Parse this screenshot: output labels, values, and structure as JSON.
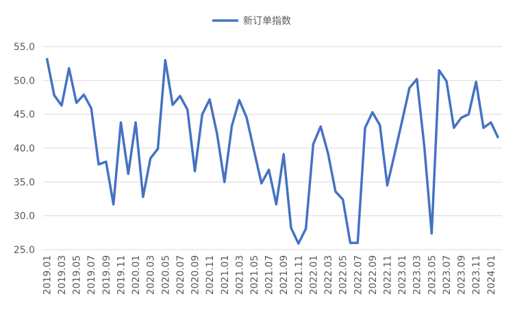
{
  "chart_data": {
    "type": "line",
    "categories": [
      "2019.01",
      null,
      "2019.03",
      null,
      "2019.05",
      null,
      "2019.07",
      null,
      "2019.09",
      null,
      "2019.11",
      null,
      "2020.01",
      null,
      "2020.03",
      null,
      "2020.05",
      null,
      "2020.07",
      null,
      "2020.09",
      null,
      "2020.11",
      null,
      "2021.01",
      null,
      "2021.03",
      null,
      "2021.05",
      null,
      "2021.07",
      null,
      "2021.09",
      null,
      "2021.11",
      null,
      "2022.01",
      null,
      "2022.03",
      null,
      "2022.05",
      null,
      "2022.07",
      null,
      "2022.09",
      null,
      "2022.11",
      null,
      "2023.01",
      null,
      "2023.03",
      null,
      "2023.05",
      null,
      "2023.07",
      null,
      "2023.09",
      null,
      "2023.11",
      null,
      "2024.01",
      null
    ],
    "series": [
      {
        "name": "新订单指数",
        "color": "#4472c4",
        "values": [
          53.3,
          47.8,
          46.3,
          51.8,
          46.7,
          47.9,
          45.9,
          37.6,
          38.0,
          31.7,
          43.8,
          36.2,
          43.8,
          32.8,
          38.5,
          39.9,
          53.0,
          46.4,
          47.7,
          45.7,
          36.6,
          45.0,
          47.2,
          42.1,
          35.0,
          43.3,
          47.1,
          44.5,
          39.6,
          34.8,
          36.8,
          31.7,
          39.1,
          28.2,
          25.9,
          28.1,
          40.6,
          43.2,
          39.2,
          33.6,
          32.4,
          26.0,
          26.0,
          43.0,
          45.3,
          43.4,
          34.5,
          39.2,
          44.0,
          48.9,
          50.2,
          40.3,
          27.4,
          51.5,
          49.9,
          43.0,
          44.5,
          45.0,
          49.8,
          43.0,
          43.8,
          41.5
        ]
      }
    ],
    "ylim": [
      25,
      55
    ],
    "yticks": [
      {
        "value": 25,
        "label": "25.0"
      },
      {
        "value": 30,
        "label": "30.0"
      },
      {
        "value": 35,
        "label": "35.0"
      },
      {
        "value": 40,
        "label": "40.0"
      },
      {
        "value": 45,
        "label": "45.0"
      },
      {
        "value": 50,
        "label": "50.0"
      },
      {
        "value": 55,
        "label": "55.0"
      }
    ],
    "grid": true,
    "legend": "top"
  }
}
